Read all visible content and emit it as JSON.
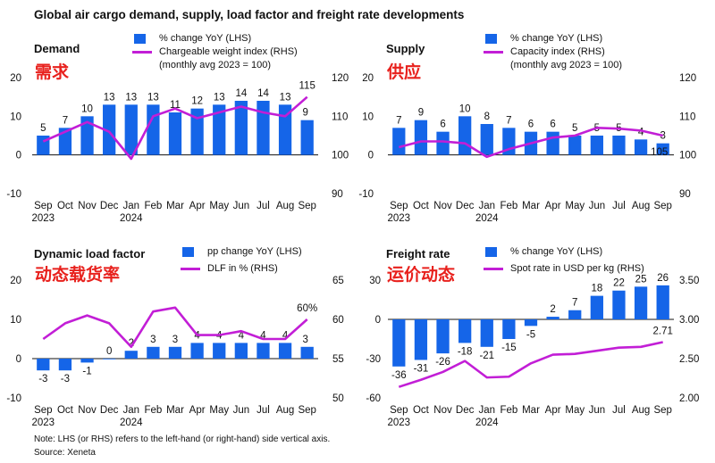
{
  "title": "Global air cargo demand, supply, load factor and freight rate developments",
  "colors": {
    "bar": "#1565e8",
    "line": "#c21ed6",
    "accent": "#e8211d"
  },
  "footnote": {
    "note": "Note: LHS (or RHS) refers to the left-hand (or right-hand) side vertical axis.",
    "source": "Source: Xeneta"
  },
  "chart_data": [
    {
      "id": "demand",
      "type": "bar",
      "title": "Demand",
      "subtitle": "需求",
      "categories": [
        "Sep",
        "Oct",
        "Nov",
        "Dec",
        "Jan",
        "Feb",
        "Mar",
        "Apr",
        "May",
        "Jun",
        "Jul",
        "Aug",
        "Sep"
      ],
      "year_labels": [
        {
          "index": 0,
          "label": "2023"
        },
        {
          "index": 4,
          "label": "2024"
        }
      ],
      "bar_series": {
        "name": "% change YoY (LHS)",
        "values": [
          5,
          7,
          10,
          13,
          13,
          13,
          11,
          12,
          13,
          14,
          14,
          13,
          9
        ],
        "labels": [
          "5",
          "7",
          "10",
          "13",
          "13",
          "13",
          "11",
          "12",
          "13",
          "14",
          "14",
          "13",
          "9"
        ]
      },
      "line_series": {
        "name": "Chargeable weight index (RHS)",
        "name_line2": "(monthly avg 2023 = 100)",
        "values": [
          103.5,
          106,
          108.5,
          106,
          99,
          110,
          112,
          109.5,
          111,
          112.5,
          111,
          110,
          115
        ],
        "end_label": "115"
      },
      "lhs": {
        "min": -10,
        "max": 20,
        "ticks": [
          -10,
          0,
          10,
          20
        ]
      },
      "rhs": {
        "min": 90,
        "max": 120,
        "ticks": [
          90,
          100,
          110,
          120
        ]
      }
    },
    {
      "id": "supply",
      "type": "bar",
      "title": "Supply",
      "subtitle": "供应",
      "categories": [
        "Sep",
        "Oct",
        "Nov",
        "Dec",
        "Jan",
        "Feb",
        "Mar",
        "Apr",
        "May",
        "Jun",
        "Jul",
        "Aug",
        "Sep"
      ],
      "year_labels": [
        {
          "index": 0,
          "label": "2023"
        },
        {
          "index": 4,
          "label": "2024"
        }
      ],
      "bar_series": {
        "name": "% change YoY (LHS)",
        "values": [
          7,
          9,
          6,
          10,
          8,
          7,
          6,
          6,
          5,
          5,
          5,
          4,
          3
        ],
        "labels": [
          "7",
          "9",
          "6",
          "10",
          "8",
          "7",
          "6",
          "6",
          "5",
          "5",
          "5",
          "4",
          "3"
        ]
      },
      "line_series": {
        "name": "Capacity index (RHS)",
        "name_line2": "(monthly avg 2023 = 100)",
        "values": [
          102,
          103.5,
          103.5,
          103,
          99.5,
          101.5,
          103,
          104.5,
          105,
          107,
          106.8,
          106.3,
          105
        ],
        "end_label": "105"
      },
      "lhs": {
        "min": -10,
        "max": 20,
        "ticks": [
          -10,
          0,
          10,
          20
        ]
      },
      "rhs": {
        "min": 90,
        "max": 120,
        "ticks": [
          90,
          100,
          110,
          120
        ]
      }
    },
    {
      "id": "load-factor",
      "type": "bar",
      "title": "Dynamic load factor",
      "subtitle": "动态载货率",
      "categories": [
        "Sep",
        "Oct",
        "Nov",
        "Dec",
        "Jan",
        "Feb",
        "Mar",
        "Apr",
        "May",
        "Jun",
        "Jul",
        "Aug",
        "Sep"
      ],
      "year_labels": [
        {
          "index": 0,
          "label": "2023"
        },
        {
          "index": 4,
          "label": "2024"
        }
      ],
      "bar_series": {
        "name": "pp change YoY (LHS)",
        "values": [
          -3,
          -3,
          -1,
          0,
          2,
          3,
          3,
          4,
          4,
          4,
          4,
          4,
          3
        ],
        "labels": [
          "-3",
          "-3",
          "-1",
          "0",
          "2",
          "3",
          "3",
          "4",
          "4",
          "4",
          "4",
          "4",
          "3"
        ]
      },
      "line_series": {
        "name": "DLF in % (RHS)",
        "values": [
          57.5,
          59.5,
          60.5,
          59.5,
          56.5,
          61,
          61.5,
          58,
          58,
          58.5,
          57.5,
          57.5,
          60
        ],
        "end_label": "60%"
      },
      "lhs": {
        "min": -10,
        "max": 20,
        "ticks": [
          -10,
          0,
          10,
          20
        ]
      },
      "rhs": {
        "min": 50,
        "max": 65,
        "ticks": [
          50,
          55,
          60,
          65
        ]
      }
    },
    {
      "id": "freight-rate",
      "type": "bar",
      "title": "Freight rate",
      "subtitle": "运价动态",
      "categories": [
        "Sep",
        "Oct",
        "Nov",
        "Dec",
        "Jan",
        "Feb",
        "Mar",
        "Apr",
        "May",
        "Jun",
        "Jul",
        "Aug",
        "Sep"
      ],
      "year_labels": [
        {
          "index": 0,
          "label": "2023"
        },
        {
          "index": 4,
          "label": "2024"
        }
      ],
      "bar_series": {
        "name": "% change YoY (LHS)",
        "values": [
          -36,
          -31,
          -26,
          -18,
          -21,
          -15,
          -5,
          2,
          7,
          18,
          22,
          25,
          26
        ],
        "labels": [
          "-36",
          "-31",
          "-26",
          "-18",
          "-21",
          "-15",
          "-5",
          "2",
          "7",
          "18",
          "22",
          "25",
          "26"
        ]
      },
      "line_series": {
        "name": "Spot rate in USD per kg (RHS)",
        "values": [
          2.14,
          2.23,
          2.33,
          2.47,
          2.26,
          2.27,
          2.44,
          2.55,
          2.56,
          2.6,
          2.64,
          2.65,
          2.71
        ],
        "end_label": "2.71"
      },
      "lhs": {
        "min": -60,
        "max": 30,
        "ticks": [
          -60,
          -30,
          0,
          30
        ]
      },
      "rhs": {
        "min": 2.0,
        "max": 3.5,
        "ticks": [
          "2.00",
          "2.50",
          "3.00",
          "3.50"
        ]
      }
    }
  ]
}
